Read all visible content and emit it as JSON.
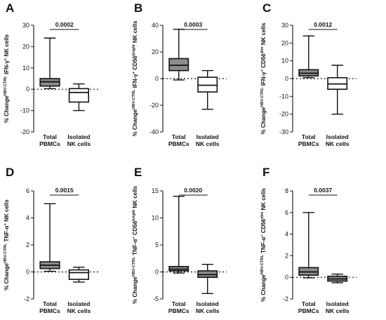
{
  "chart_data": [
    {
      "type": "boxplot",
      "panel": "A",
      "ylabel": {
        "pre": "% Change",
        "sup1": "HBV-CTRL",
        "mid": " IFN-γ",
        "sup2": "+",
        "post": " NK cells"
      },
      "ylim": [
        -20,
        30
      ],
      "yticks": [
        "-20",
        "-10",
        "0",
        "10",
        "20",
        "30"
      ],
      "categories": [
        "Total PBMCs",
        "Isolated NK cells"
      ],
      "boxes": [
        {
          "min": 0.3,
          "q1": 1.5,
          "median": 3.5,
          "q3": 5.0,
          "max": 24.0,
          "fill": "#8c8c8c"
        },
        {
          "min": -10.0,
          "q1": -6.0,
          "median": -1.5,
          "q3": 0.3,
          "max": 2.5,
          "fill": "#ffffff"
        }
      ],
      "pvalue": "0.0002"
    },
    {
      "type": "boxplot",
      "panel": "B",
      "ylabel": {
        "pre": "% Change",
        "sup1": "HBV-CTRL",
        "mid": " IFN-γ",
        "sup2": "+",
        "post": " CD56",
        "sup3": "bright",
        "post2": " NK cells"
      },
      "ylim": [
        -40,
        40
      ],
      "yticks": [
        "-40",
        "-20",
        "0",
        "20",
        "40"
      ],
      "categories": [
        "Total PBMCs",
        "Isolated NK cells"
      ],
      "boxes": [
        {
          "min": -1.0,
          "q1": 6.0,
          "median": 10.0,
          "q3": 15.0,
          "max": 37.0,
          "fill": "#8c8c8c"
        },
        {
          "min": -23.0,
          "q1": -10.0,
          "median": -5.0,
          "q3": 1.0,
          "max": 6.0,
          "fill": "#ffffff"
        }
      ],
      "pvalue": "0.0003"
    },
    {
      "type": "boxplot",
      "panel": "C",
      "ylabel": {
        "pre": "% Change",
        "sup1": "HBV-CTRL",
        "mid": " IFN-γ",
        "sup2": "+",
        "post": " CD56",
        "sup3": "dim",
        "post2": " NK cells"
      },
      "ylim": [
        -30,
        30
      ],
      "yticks": [
        "-30",
        "-20",
        "-10",
        "0",
        "10",
        "20",
        "30"
      ],
      "categories": [
        "Total PBMCs",
        "Isolated NK cells"
      ],
      "boxes": [
        {
          "min": 0.5,
          "q1": 1.5,
          "median": 3.0,
          "q3": 5.0,
          "max": 24.0,
          "fill": "#8c8c8c"
        },
        {
          "min": -20.0,
          "q1": -6.0,
          "median": -3.0,
          "q3": 0.5,
          "max": 7.5,
          "fill": "#ffffff"
        }
      ],
      "pvalue": "0.0012"
    },
    {
      "type": "boxplot",
      "panel": "D",
      "ylabel": {
        "pre": "% Change",
        "sup1": "HBV-CTRL",
        "mid": " TNF-α",
        "sup2": "+",
        "post": " NK cells"
      },
      "ylim": [
        -2,
        6
      ],
      "yticks": [
        "-2",
        "0",
        "2",
        "4",
        "6"
      ],
      "categories": [
        "Total PBMCs",
        "Isolated NK cells"
      ],
      "boxes": [
        {
          "min": 0.05,
          "q1": 0.25,
          "median": 0.5,
          "q3": 0.75,
          "max": 5.05,
          "fill": "#8c8c8c"
        },
        {
          "min": -0.75,
          "q1": -0.55,
          "median": -0.05,
          "q3": 0.15,
          "max": 0.35,
          "fill": "#ffffff"
        }
      ],
      "pvalue": "0.0015"
    },
    {
      "type": "boxplot",
      "panel": "E",
      "ylabel": {
        "pre": "% Change",
        "sup1": "HBV-CTRL",
        "mid": " TNF-α",
        "sup2": "+",
        "post": " CD56",
        "sup3": "bright",
        "post2": " NK cells"
      },
      "ylim": [
        -5,
        15
      ],
      "yticks": [
        "-5",
        "0",
        "5",
        "10",
        "15"
      ],
      "categories": [
        "Total PBMCs",
        "Isolated NK cells"
      ],
      "boxes": [
        {
          "min": -0.2,
          "q1": 0.2,
          "median": 0.5,
          "q3": 1.0,
          "max": 14.0,
          "fill": "#8c8c8c"
        },
        {
          "min": -4.0,
          "q1": -1.0,
          "median": -0.5,
          "q3": 0.2,
          "max": 1.4,
          "fill": "#8c8c8c"
        }
      ],
      "pvalue": "0.0020"
    },
    {
      "type": "boxplot",
      "panel": "F",
      "ylabel": {
        "pre": "% Change",
        "sup1": "HBV-CTRL",
        "mid": " TNF-α",
        "sup2": "+",
        "post": " CD56",
        "sup3": "dim",
        "post2": " NK cells"
      },
      "ylim": [
        -2,
        8
      ],
      "yticks": [
        "-2",
        "0",
        "2",
        "4",
        "6",
        "8"
      ],
      "categories": [
        "Total PBMCs",
        "Isolated NK cells"
      ],
      "boxes": [
        {
          "min": -0.05,
          "q1": 0.2,
          "median": 0.5,
          "q3": 0.9,
          "max": 6.0,
          "fill": "#8c8c8c"
        },
        {
          "min": -0.5,
          "q1": -0.35,
          "median": -0.15,
          "q3": 0.1,
          "max": 0.3,
          "fill": "#8c8c8c"
        }
      ],
      "pvalue": "0.0037"
    }
  ]
}
